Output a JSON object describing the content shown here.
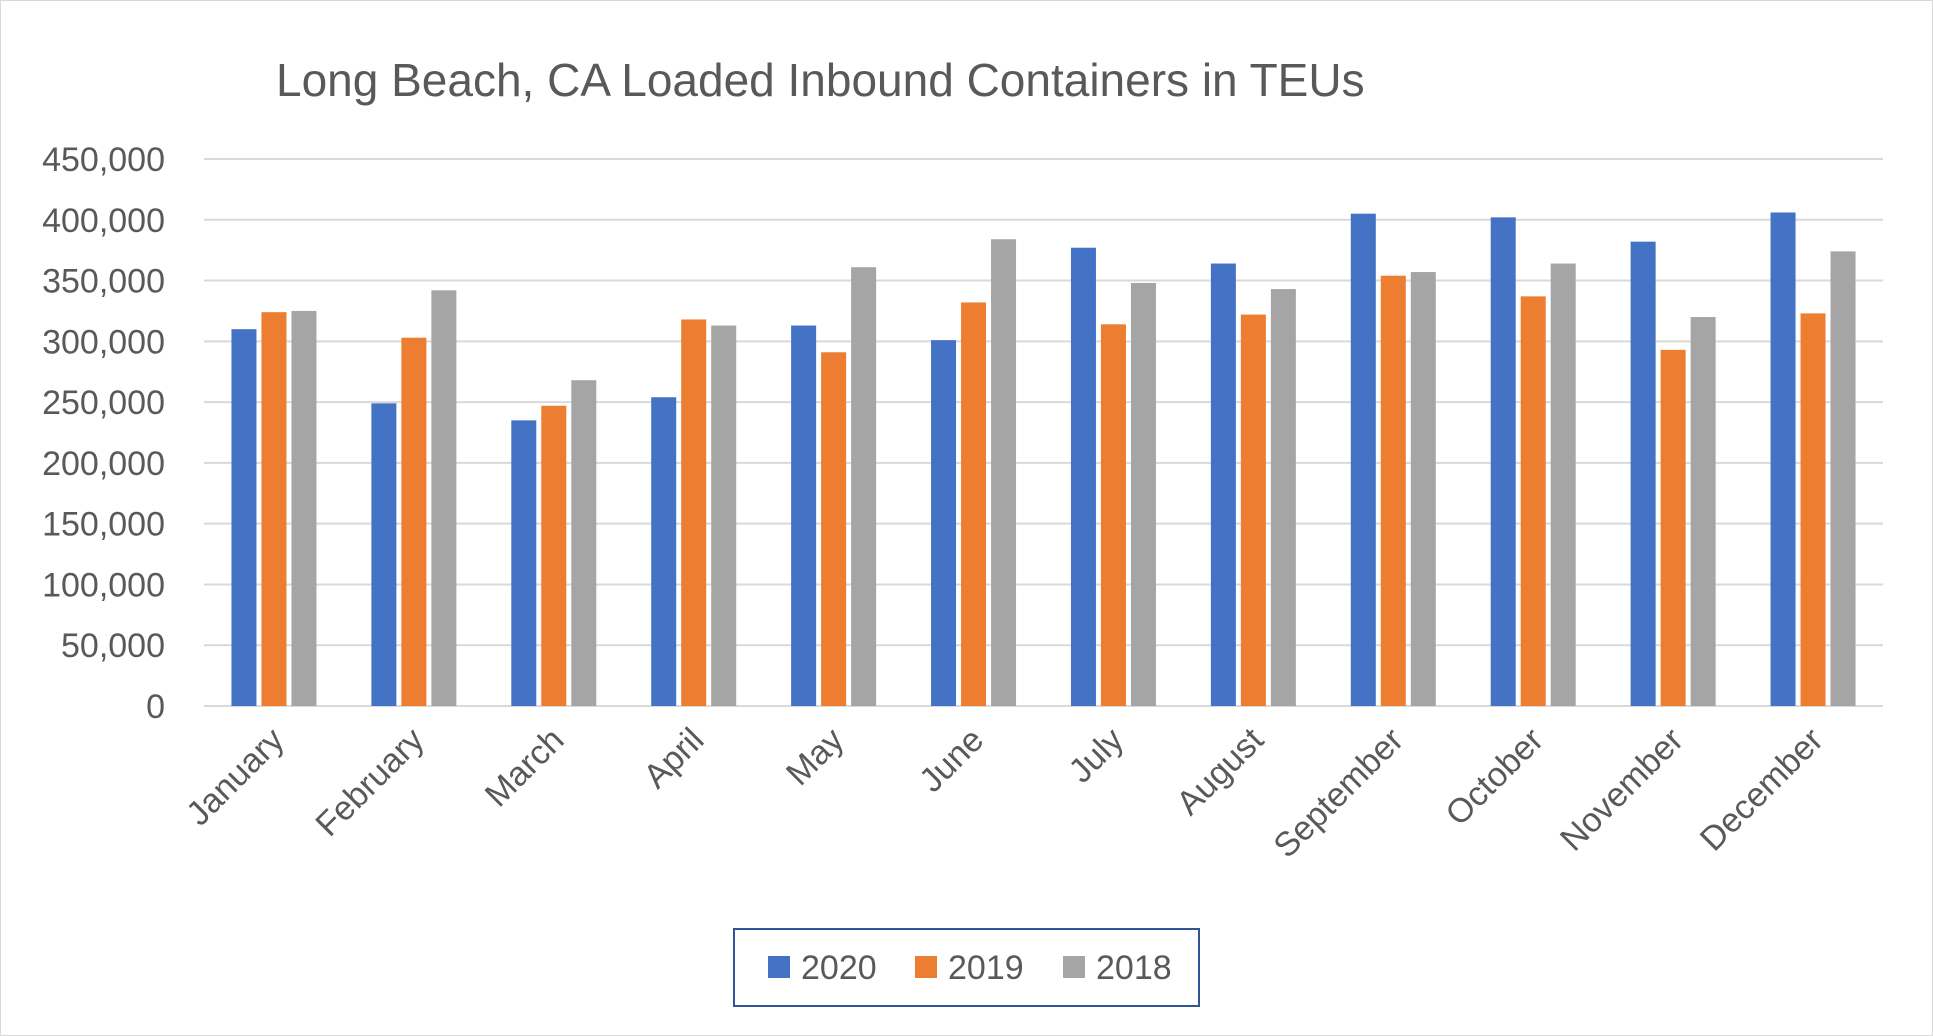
{
  "chart_data": {
    "type": "bar",
    "title": "Long Beach, CA Loaded Inbound Containers in TEUs",
    "xlabel": "",
    "ylabel": "",
    "ylim": [
      0,
      450000
    ],
    "yticks": [
      "0",
      "50,000",
      "100,000",
      "150,000",
      "200,000",
      "250,000",
      "300,000",
      "350,000",
      "400,000",
      "450,000"
    ],
    "ytick_values": [
      0,
      50000,
      100000,
      150000,
      200000,
      250000,
      300000,
      350000,
      400000,
      450000
    ],
    "grid": true,
    "legend_position": "bottom-center",
    "categories": [
      "January",
      "February",
      "March",
      "April",
      "May",
      "June",
      "July",
      "August",
      "September",
      "October",
      "November",
      "December"
    ],
    "series": [
      {
        "name": "2020",
        "color": "#4472c4",
        "values": [
          310000,
          249000,
          235000,
          254000,
          313000,
          301000,
          377000,
          364000,
          405000,
          402000,
          382000,
          406000
        ]
      },
      {
        "name": "2019",
        "color": "#ed7d31",
        "values": [
          324000,
          303000,
          247000,
          318000,
          291000,
          332000,
          314000,
          322000,
          354000,
          337000,
          293000,
          323000
        ]
      },
      {
        "name": "2018",
        "color": "#a5a5a5",
        "values": [
          325000,
          342000,
          268000,
          313000,
          361000,
          384000,
          348000,
          343000,
          357000,
          364000,
          320000,
          374000
        ]
      }
    ]
  }
}
